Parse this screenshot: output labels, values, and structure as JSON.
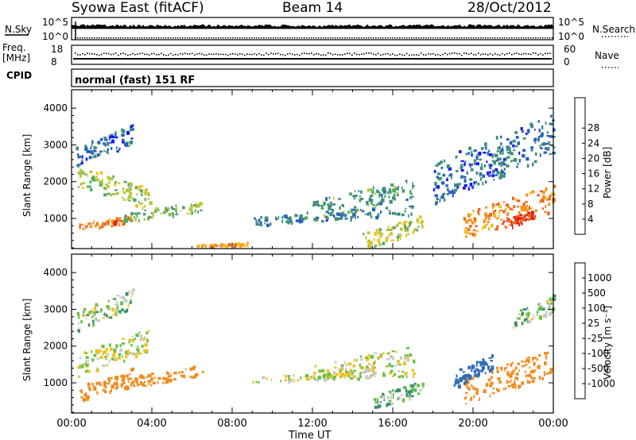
{
  "header": {
    "station": "Syowa East (fitACF)",
    "beam": "Beam 14",
    "date": "28/Oct/2012"
  },
  "top_panels": {
    "nsky_label": "N.Sky",
    "nsearch_label": "N.Search",
    "nsky_ticks": [
      "10^5",
      "10^0"
    ],
    "nsearch_ticks": [
      "10^5",
      "10^0"
    ],
    "freq_label_top": "Freq.",
    "freq_label_bottom": "[MHz]",
    "freq_ticks": [
      "18",
      "8"
    ],
    "nave_label": "Nave",
    "nave_ticks": [
      "60",
      "0"
    ],
    "cpid_label": "CPID",
    "cpid_text": "normal (fast) 151 RF"
  },
  "x_axis": {
    "ticks": [
      "00:00",
      "04:00",
      "08:00",
      "12:00",
      "16:00",
      "20:00",
      "00:00"
    ],
    "label": "Time UT"
  },
  "range_axis": {
    "label": "Slant Range [km]",
    "ticks": [
      "1000",
      "2000",
      "3000",
      "4000"
    ]
  },
  "power_scale": {
    "label": "Power [dB]",
    "ticks": [
      "4",
      "8",
      "12",
      "16",
      "20",
      "24",
      "28"
    ],
    "colors": [
      "#1515ff",
      "#2a5fbf",
      "#3e8f7a",
      "#52a865",
      "#b8c83c",
      "#f0c020",
      "#f59220",
      "#f06018",
      "#e02010"
    ]
  },
  "velocity_scale": {
    "label": "Velocity [m s⁻¹]",
    "ticks": [
      "1000",
      "500",
      "100",
      "25",
      "-25",
      "-100",
      "-500",
      "-1000"
    ],
    "colors": [
      "#2030c0",
      "#2e6eb8",
      "#3a8c70",
      "#6cc040",
      "#c8c8c8",
      "#f0c020",
      "#f08c20",
      "#f05818",
      "#e01818"
    ]
  },
  "chart_data": [
    {
      "type": "heatmap",
      "title": "Power",
      "xlabel": "",
      "ylabel": "Slant Range [km]",
      "xlim": [
        "00:00",
        "24:00"
      ],
      "ylim": [
        180,
        4500
      ],
      "colorbar": {
        "label": "Power [dB]",
        "range": [
          0,
          30
        ]
      },
      "series": [
        {
          "x": [
            0.3,
            3.9
          ],
          "y": [
            2200,
            1500
          ],
          "value": 14
        },
        {
          "x": [
            0.3,
            3.0
          ],
          "y": [
            800,
            1000
          ],
          "value": 24
        },
        {
          "x": [
            2.5,
            6.5
          ],
          "y": [
            1050,
            1350
          ],
          "value": 12
        },
        {
          "x": [
            0.2,
            3.0
          ],
          "y": [
            2700,
            3300
          ],
          "value": 6
        },
        {
          "x": [
            6.2,
            8.8
          ],
          "y": [
            260,
            340
          ],
          "value": 20
        },
        {
          "x": [
            9.0,
            17.0
          ],
          "y": [
            950,
            1250
          ],
          "value": 7
        },
        {
          "x": [
            12.0,
            17.0
          ],
          "y": [
            1250,
            1850
          ],
          "value": 10
        },
        {
          "x": [
            14.5,
            17.5
          ],
          "y": [
            400,
            900
          ],
          "value": 16
        },
        {
          "x": [
            19.5,
            24.0
          ],
          "y": [
            800,
            1600
          ],
          "value": 22
        },
        {
          "x": [
            21.5,
            23.0
          ],
          "y": [
            850,
            1150
          ],
          "value": 28
        },
        {
          "x": [
            18.0,
            24.0
          ],
          "y": [
            2000,
            3300
          ],
          "value": 6
        }
      ]
    },
    {
      "type": "heatmap",
      "title": "Velocity",
      "xlabel": "Time UT",
      "ylabel": "Slant Range [km]",
      "xlim": [
        "00:00",
        "24:00"
      ],
      "ylim": [
        180,
        4500
      ],
      "colorbar": {
        "label": "Velocity [m s⁻¹]",
        "range": [
          -1000,
          1000
        ]
      },
      "series": [
        {
          "x": [
            0.3,
            3.9
          ],
          "y": [
            1500,
            2200
          ],
          "value": 0
        },
        {
          "x": [
            0.3,
            3.0
          ],
          "y": [
            700,
            1200
          ],
          "value": -300
        },
        {
          "x": [
            2.5,
            6.5
          ],
          "y": [
            1000,
            1350
          ],
          "value": -400
        },
        {
          "x": [
            0.2,
            3.0
          ],
          "y": [
            2700,
            3300
          ],
          "value": 50
        },
        {
          "x": [
            9.0,
            17.0
          ],
          "y": [
            1100,
            1300
          ],
          "value": 0
        },
        {
          "x": [
            12.0,
            17.0
          ],
          "y": [
            1300,
            1800
          ],
          "value": 0
        },
        {
          "x": [
            15.0,
            17.5
          ],
          "y": [
            500,
            900
          ],
          "value": 80
        },
        {
          "x": [
            19.5,
            24.0
          ],
          "y": [
            800,
            1600
          ],
          "value": -350
        },
        {
          "x": [
            19.0,
            21.0
          ],
          "y": [
            1100,
            1600
          ],
          "value": 600
        },
        {
          "x": [
            22.0,
            24.0
          ],
          "y": [
            2700,
            3200
          ],
          "value": 60
        }
      ]
    }
  ]
}
